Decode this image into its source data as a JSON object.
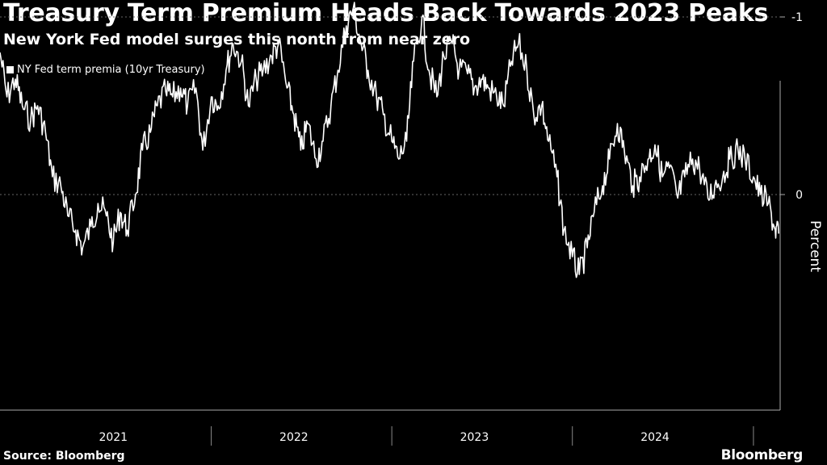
{
  "title": "Treasury Term Premium Heads Back Towards 2023 Peaks",
  "subtitle": "New York Fed model surges this nonth from near zero",
  "source": "Source: Bloomberg",
  "brand": "Bloomberg",
  "chart_data": {
    "type": "line",
    "ylabel": "Percent",
    "ylim": [
      -1.2,
      0.6
    ],
    "yticks": [
      {
        "value": 0,
        "label": "0"
      },
      {
        "value": -1,
        "label": "-1"
      }
    ],
    "xlim": [
      "2020-07-01",
      "2024-10-25"
    ],
    "year_labels": [
      {
        "label": "2021",
        "x": "2021-02-15"
      },
      {
        "label": "2022",
        "x": "2022-02-15"
      },
      {
        "label": "2023",
        "x": "2023-02-15"
      },
      {
        "label": "2024",
        "x": "2024-02-15"
      }
    ],
    "year_dividers": [
      "2021-09-01",
      "2022-09-01",
      "2023-09-01",
      "2024-09-01"
    ],
    "grid": true,
    "legend": "top-left",
    "colors": {
      "line": "#ffffff",
      "grid": "#666666",
      "background": "#000000"
    },
    "series": [
      {
        "name": "NY Fed term premia (10yr Treasury)",
        "points": [
          [
            "2020-07-01",
            -0.8
          ],
          [
            "2020-07-15",
            -0.55
          ],
          [
            "2020-08-01",
            -0.65
          ],
          [
            "2020-08-15",
            -0.5
          ],
          [
            "2020-09-01",
            -0.42
          ],
          [
            "2020-09-15",
            -0.5
          ],
          [
            "2020-10-01",
            -0.35
          ],
          [
            "2020-10-15",
            -0.1
          ],
          [
            "2020-11-01",
            -0.05
          ],
          [
            "2020-11-15",
            0.12
          ],
          [
            "2020-12-01",
            0.2
          ],
          [
            "2020-12-15",
            0.3
          ],
          [
            "2021-01-01",
            0.18
          ],
          [
            "2021-01-15",
            0.05
          ],
          [
            "2021-02-01",
            0.12
          ],
          [
            "2021-02-15",
            0.27
          ],
          [
            "2021-03-01",
            0.1
          ],
          [
            "2021-03-15",
            0.2
          ],
          [
            "2021-04-01",
            0.0
          ],
          [
            "2021-04-15",
            -0.25
          ],
          [
            "2021-05-01",
            -0.35
          ],
          [
            "2021-05-15",
            -0.5
          ],
          [
            "2021-06-01",
            -0.58
          ],
          [
            "2021-06-15",
            -0.55
          ],
          [
            "2021-07-01",
            -0.6
          ],
          [
            "2021-07-15",
            -0.5
          ],
          [
            "2021-08-01",
            -0.6
          ],
          [
            "2021-08-15",
            -0.25
          ],
          [
            "2021-09-01",
            -0.55
          ],
          [
            "2021-09-15",
            -0.5
          ],
          [
            "2021-10-01",
            -0.7
          ],
          [
            "2021-10-15",
            -0.85
          ],
          [
            "2021-11-01",
            -0.75
          ],
          [
            "2021-11-15",
            -0.5
          ],
          [
            "2021-12-01",
            -0.65
          ],
          [
            "2021-12-15",
            -0.7
          ],
          [
            "2022-01-01",
            -0.78
          ],
          [
            "2022-01-15",
            -0.85
          ],
          [
            "2022-02-01",
            -0.6
          ],
          [
            "2022-02-15",
            -0.45
          ],
          [
            "2022-03-01",
            -0.25
          ],
          [
            "2022-03-15",
            -0.4
          ],
          [
            "2022-04-01",
            -0.2
          ],
          [
            "2022-04-15",
            -0.3
          ],
          [
            "2022-05-01",
            -0.5
          ],
          [
            "2022-05-15",
            -0.7
          ],
          [
            "2022-06-01",
            -0.95
          ],
          [
            "2022-06-15",
            -1.05
          ],
          [
            "2022-07-01",
            -0.85
          ],
          [
            "2022-07-15",
            -0.7
          ],
          [
            "2022-08-01",
            -0.55
          ],
          [
            "2022-08-15",
            -0.45
          ],
          [
            "2022-09-01",
            -0.3
          ],
          [
            "2022-09-15",
            -0.2
          ],
          [
            "2022-10-01",
            -0.3
          ],
          [
            "2022-10-15",
            -0.75
          ],
          [
            "2022-11-01",
            -1.0
          ],
          [
            "2022-11-15",
            -0.7
          ],
          [
            "2022-12-01",
            -0.55
          ],
          [
            "2022-12-15",
            -0.78
          ],
          [
            "2023-01-01",
            -0.85
          ],
          [
            "2023-01-15",
            -0.7
          ],
          [
            "2023-02-01",
            -0.68
          ],
          [
            "2023-02-15",
            -0.6
          ],
          [
            "2023-03-01",
            -0.65
          ],
          [
            "2023-03-15",
            -0.6
          ],
          [
            "2023-04-01",
            -0.55
          ],
          [
            "2023-04-15",
            -0.5
          ],
          [
            "2023-05-01",
            -0.75
          ],
          [
            "2023-05-15",
            -0.85
          ],
          [
            "2023-06-01",
            -0.7
          ],
          [
            "2023-06-15",
            -0.45
          ],
          [
            "2023-07-01",
            -0.5
          ],
          [
            "2023-07-15",
            -0.3
          ],
          [
            "2023-08-01",
            -0.1
          ],
          [
            "2023-08-15",
            0.2
          ],
          [
            "2023-09-01",
            0.35
          ],
          [
            "2023-09-15",
            0.45
          ],
          [
            "2023-10-01",
            0.3
          ],
          [
            "2023-10-15",
            0.1
          ],
          [
            "2023-11-01",
            -0.05
          ],
          [
            "2023-11-15",
            -0.2
          ],
          [
            "2023-12-01",
            -0.4
          ],
          [
            "2023-12-15",
            -0.25
          ],
          [
            "2024-01-01",
            -0.05
          ],
          [
            "2024-01-15",
            -0.1
          ],
          [
            "2024-02-01",
            -0.2
          ],
          [
            "2024-02-15",
            -0.28
          ],
          [
            "2024-03-01",
            -0.1
          ],
          [
            "2024-03-15",
            -0.15
          ],
          [
            "2024-04-01",
            0.02
          ],
          [
            "2024-04-15",
            -0.1
          ],
          [
            "2024-05-01",
            -0.2
          ],
          [
            "2024-05-15",
            -0.15
          ],
          [
            "2024-06-01",
            0.02
          ],
          [
            "2024-06-15",
            -0.05
          ],
          [
            "2024-07-01",
            -0.1
          ],
          [
            "2024-07-15",
            -0.2
          ],
          [
            "2024-08-01",
            -0.25
          ],
          [
            "2024-08-15",
            -0.2
          ],
          [
            "2024-09-01",
            -0.1
          ],
          [
            "2024-09-15",
            0.0
          ],
          [
            "2024-10-01",
            0.05
          ],
          [
            "2024-10-15",
            0.2
          ],
          [
            "2024-10-22",
            0.22
          ]
        ]
      }
    ]
  }
}
